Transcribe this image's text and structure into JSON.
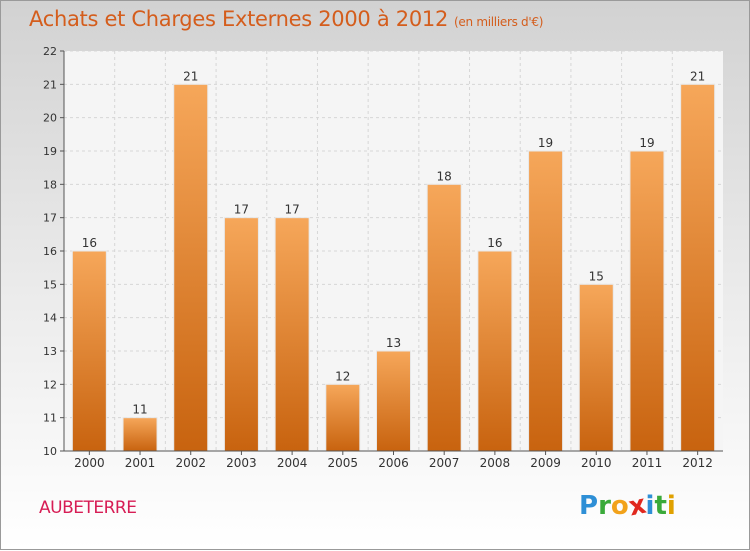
{
  "title": "Achats et Charges Externes 2000 à 2012",
  "subtitle": "(en milliers d'€)",
  "commune": "AUBETERRE",
  "brand": {
    "letters": [
      "P",
      "r",
      "o",
      "x",
      "i",
      "t",
      "i"
    ],
    "colors": [
      "#2e8fd6",
      "#3aaa3a",
      "#f2a21a",
      "#e0281e",
      "#2e8fd6",
      "#3aaa3a",
      "#e0a100"
    ]
  },
  "colors": {
    "bar_top": "#f6a75a",
    "bar_bottom": "#c8630f",
    "title": "#d45d1c",
    "commune": "#d71d55"
  },
  "chart_data": {
    "type": "bar",
    "categories": [
      "2000",
      "2001",
      "2002",
      "2003",
      "2004",
      "2005",
      "2006",
      "2007",
      "2008",
      "2009",
      "2010",
      "2011",
      "2012"
    ],
    "values": [
      16,
      11,
      21,
      17,
      17,
      12,
      13,
      18,
      16,
      19,
      15,
      19,
      21
    ],
    "ylim": [
      10,
      22
    ],
    "yticks": [
      10,
      11,
      12,
      13,
      14,
      15,
      16,
      17,
      18,
      19,
      20,
      21,
      22
    ],
    "grid": true,
    "data_labels": true
  }
}
